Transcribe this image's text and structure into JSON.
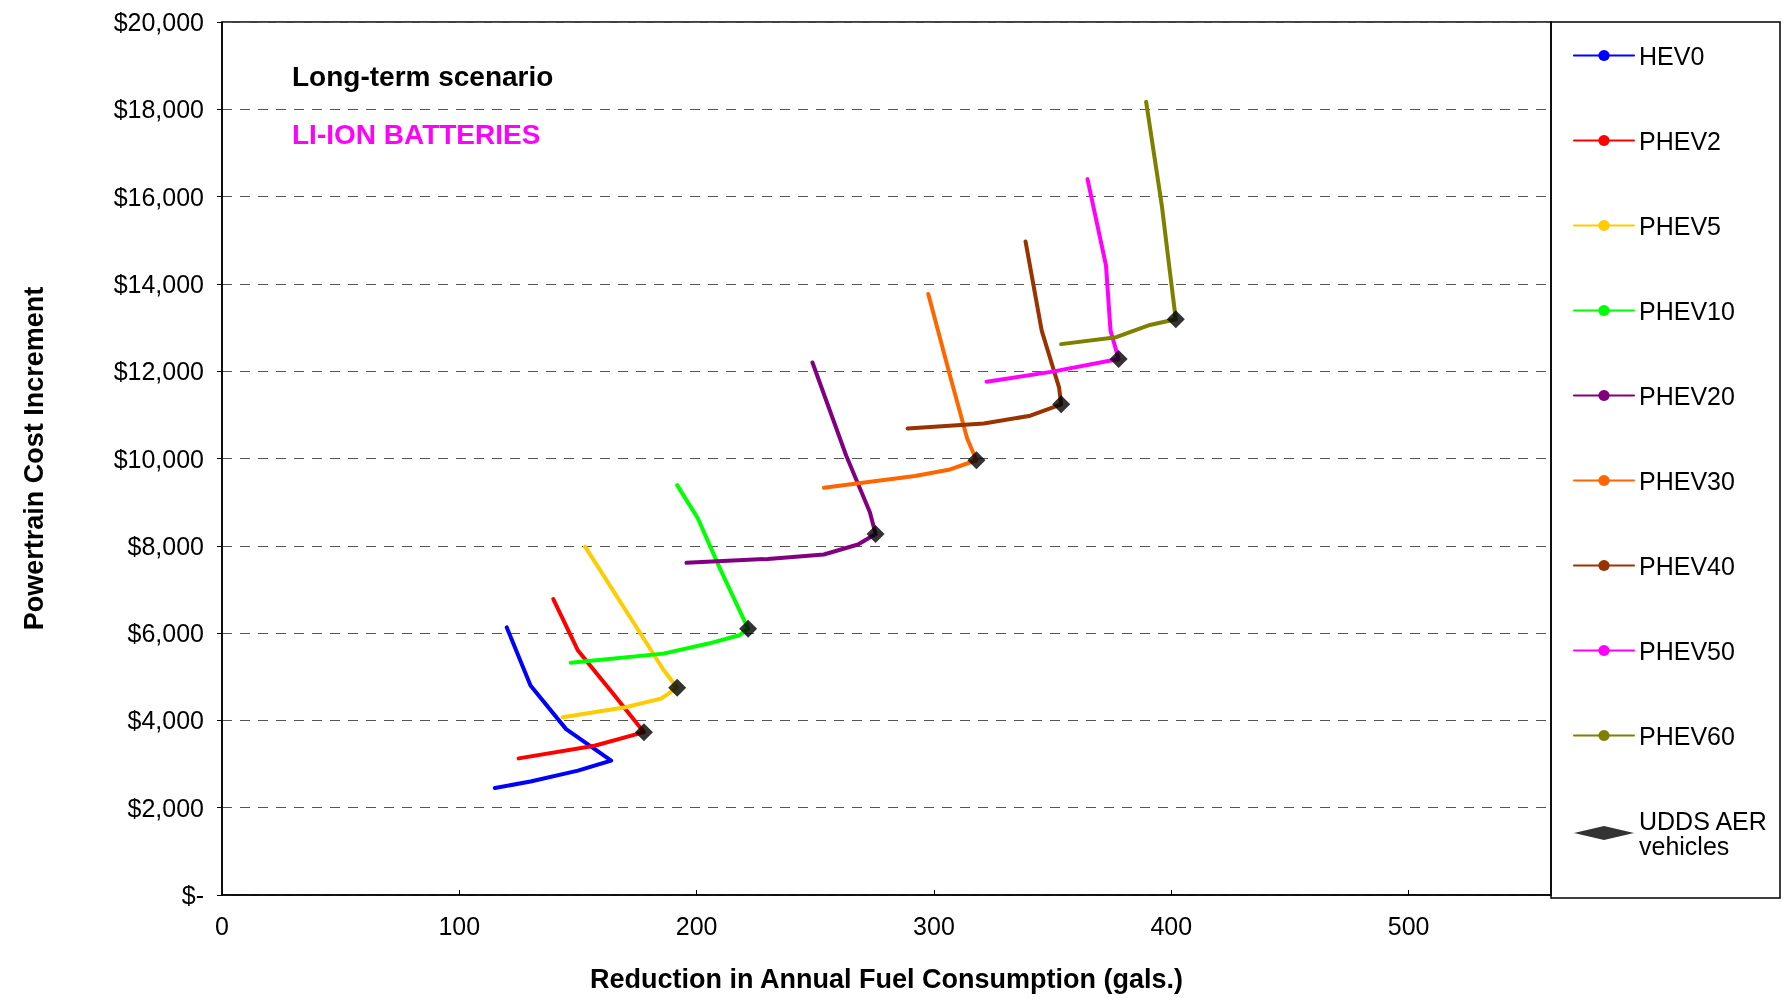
{
  "chart_data": {
    "type": "line",
    "xlabel": "Reduction in Annual Fuel Consumption (gals.)",
    "ylabel": "Powertrain Cost Increment",
    "annotations": [
      "Long-term scenario",
      "LI-ION BATTERIES"
    ],
    "xlim": [
      0,
      560
    ],
    "xticks": [
      0,
      100,
      200,
      300,
      400,
      500
    ],
    "ylim": [
      0,
      20000
    ],
    "yticks": [
      {
        "value": 0,
        "label": "$-"
      },
      {
        "value": 2000,
        "label": "$2,000"
      },
      {
        "value": 4000,
        "label": "$4,000"
      },
      {
        "value": 6000,
        "label": "$6,000"
      },
      {
        "value": 8000,
        "label": "$8,000"
      },
      {
        "value": 10000,
        "label": "$10,000"
      },
      {
        "value": 12000,
        "label": "$12,000"
      },
      {
        "value": 14000,
        "label": "$14,000"
      },
      {
        "value": 16000,
        "label": "$16,000"
      },
      {
        "value": 18000,
        "label": "$18,000"
      },
      {
        "value": 20000,
        "label": "$20,000"
      }
    ],
    "grid": "y",
    "legend": "right",
    "marker": "none",
    "line_style": "solid",
    "series": [
      {
        "name": "HEV0",
        "color": "#0000ff",
        "x": [
          115,
          130,
          150,
          164,
          145,
          130,
          120
        ],
        "values": [
          2450,
          2600,
          2850,
          3080,
          3800,
          4800,
          6130
        ]
      },
      {
        "name": "PHEV2",
        "color": "#ff0000",
        "x": [
          125,
          157,
          177.8,
          165,
          150,
          139.6
        ],
        "values": [
          3130,
          3420,
          3730,
          4600,
          5600,
          6780
        ]
      },
      {
        "name": "PHEV5",
        "color": "#ffcc00",
        "x": [
          143.5,
          170,
          185,
          191.8,
          186,
          176,
          153
        ],
        "values": [
          4070,
          4300,
          4500,
          4750,
          5160,
          6020,
          7980
        ]
      },
      {
        "name": "PHEV10",
        "color": "#00ff00",
        "x": [
          147,
          186,
          205,
          218,
          221.7,
          210,
          200.5,
          191.8
        ],
        "values": [
          5320,
          5530,
          5760,
          5950,
          6100,
          7460,
          8630,
          9390
        ]
      },
      {
        "name": "PHEV20",
        "color": "#800080",
        "x": [
          195.7,
          230,
          253.6,
          268,
          275.4,
          273,
          263,
          248.8
        ],
        "values": [
          7610,
          7700,
          7800,
          8030,
          8270,
          8770,
          10070,
          12200
        ]
      },
      {
        "name": "PHEV30",
        "color": "#ff6600",
        "x": [
          253.6,
          292,
          306.8,
          317.9,
          314,
          306.8,
          297.6
        ],
        "values": [
          9330,
          9600,
          9750,
          9960,
          10460,
          11890,
          13770
        ]
      },
      {
        "name": "PHEV40",
        "color": "#993300",
        "x": [
          288.9,
          321,
          340.6,
          353.6,
          352.7,
          345.4,
          338.6
        ],
        "values": [
          10690,
          10800,
          10980,
          11240,
          11630,
          12930,
          14970
        ]
      },
      {
        "name": "PHEV50",
        "color": "#ff00ff",
        "x": [
          322.2,
          350,
          377.8,
          374.4,
          372.5,
          364.7
        ],
        "values": [
          11760,
          11990,
          12280,
          12930,
          14420,
          16400
        ]
      },
      {
        "name": "PHEV60",
        "color": "#808000",
        "x": [
          353.6,
          376.8,
          391,
          401.9,
          399.5,
          396,
          389.4
        ],
        "values": [
          12620,
          12780,
          13060,
          13190,
          14240,
          15800,
          18170
        ]
      },
      {
        "name": "UDDS AER vehicles",
        "type": "scatter",
        "marker": "diamond",
        "color": "#000000",
        "x": [
          177.8,
          191.8,
          221.7,
          275.4,
          317.9,
          353.6,
          377.8,
          401.9
        ],
        "values": [
          3730,
          4750,
          6100,
          8270,
          9960,
          11240,
          12280,
          13190
        ]
      }
    ]
  }
}
